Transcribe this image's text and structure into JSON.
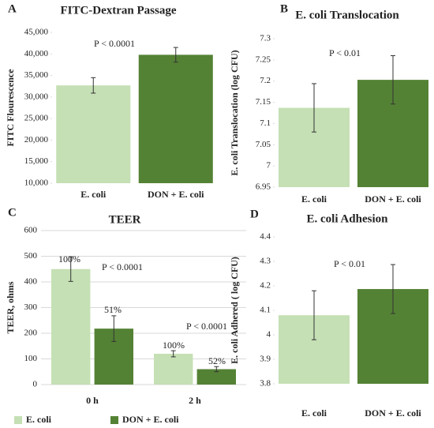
{
  "chart_data": [
    {
      "type": "bar",
      "panel_label": "A",
      "title": "FITC-Dextran Passage",
      "ylabel": "FITC Flourescence",
      "categories": [
        "E. coli",
        "DON + E. coli"
      ],
      "values": [
        32700,
        39800
      ],
      "errors": [
        1800,
        1700
      ],
      "colors": [
        "#c5e0b4",
        "#548235"
      ],
      "ylim": [
        10000,
        45000
      ],
      "yticks": [
        {
          "value": 10000,
          "label": "10,000"
        },
        {
          "value": 15000,
          "label": "15,000"
        },
        {
          "value": 20000,
          "label": "20,000"
        },
        {
          "value": 25000,
          "label": "25,000"
        },
        {
          "value": 30000,
          "label": "30,000"
        },
        {
          "value": 35000,
          "label": "35,000"
        },
        {
          "value": 40000,
          "label": "40,000"
        },
        {
          "value": 45000,
          "label": "45,000"
        }
      ],
      "annotations": [
        "P < 0.0001"
      ]
    },
    {
      "type": "bar",
      "panel_label": "B",
      "title": "E. coli Translocation",
      "ylabel": "E. coli Translocation (log CFU)",
      "categories": [
        "E. coli",
        "DON + E. coli"
      ],
      "values": [
        7.137,
        7.203
      ],
      "errors": [
        0.057,
        0.057
      ],
      "colors": [
        "#c5e0b4",
        "#548235"
      ],
      "ylim": [
        6.95,
        7.3
      ],
      "yticks": [
        6.95,
        7,
        7.05,
        7.1,
        7.15,
        7.2,
        7.25,
        7.3
      ],
      "annotations": [
        "P < 0.01"
      ]
    },
    {
      "type": "grouped_bar",
      "panel_label": "C",
      "title": "TEER",
      "ylabel": "TEER, ohms",
      "categories": [
        "0 h",
        "2 h"
      ],
      "series": [
        {
          "name": "E. coli",
          "color": "#c5e0b4",
          "values": [
            450,
            120
          ],
          "errors": [
            48,
            12
          ]
        },
        {
          "name": "DON + E. coli",
          "color": "#548235",
          "values": [
            218,
            60
          ],
          "errors": [
            50,
            10
          ]
        }
      ],
      "ylim": [
        0,
        600
      ],
      "yticks": [
        0,
        100,
        200,
        300,
        400,
        500,
        600
      ],
      "annotations": [
        "100%",
        "51%",
        "100%",
        "52%",
        "P < 0.0001",
        "P < 0.0001"
      ]
    },
    {
      "type": "bar",
      "panel_label": "D",
      "title": "E. coli Adhesion",
      "ylabel": "E. coli Adhered ( log CFU)",
      "categories": [
        "E. coli",
        "DON + E. coli"
      ],
      "values": [
        4.08,
        4.187
      ],
      "errors": [
        0.1,
        0.1
      ],
      "colors": [
        "#c5e0b4",
        "#548235"
      ],
      "ylim": [
        3.8,
        4.4
      ],
      "yticks": [
        3.8,
        3.9,
        4,
        4.1,
        4.2,
        4.3,
        4.4
      ],
      "annotations": [
        "P < 0.01"
      ]
    }
  ]
}
